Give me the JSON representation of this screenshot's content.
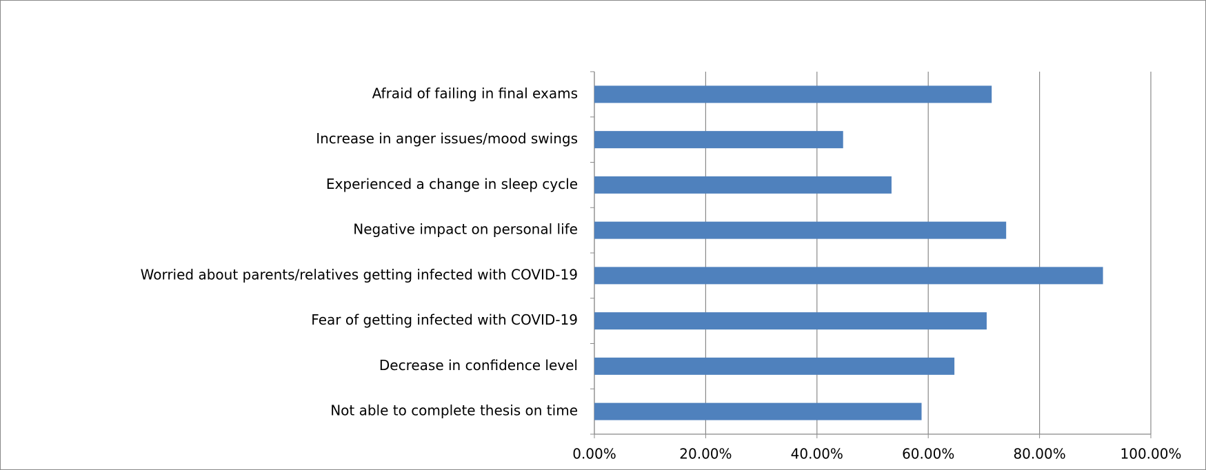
{
  "chart_data": {
    "type": "bar",
    "orientation": "horizontal",
    "categories": [
      "Afraid of failing in final exams",
      "Increase in anger issues/mood swings",
      "Experienced a change in sleep cycle",
      "Negative impact on personal life",
      "Worried about parents/relatives getting infected with COVID-19",
      "Fear of getting infected with COVID-19",
      "Decrease in confidence level",
      "Not able to complete thesis on time"
    ],
    "values": [
      71.4,
      44.7,
      53.4,
      74.0,
      91.4,
      70.5,
      64.7,
      58.8
    ],
    "color": "#4f81bd",
    "xlim": [
      0,
      100
    ],
    "xticks": [
      {
        "value": 0,
        "label": "0.00%"
      },
      {
        "value": 20,
        "label": "20.00%"
      },
      {
        "value": 40,
        "label": "40.00%"
      },
      {
        "value": 60,
        "label": "60.00%"
      },
      {
        "value": 80,
        "label": "80.00%"
      },
      {
        "value": 100,
        "label": "100.00%"
      }
    ],
    "grid": true
  }
}
